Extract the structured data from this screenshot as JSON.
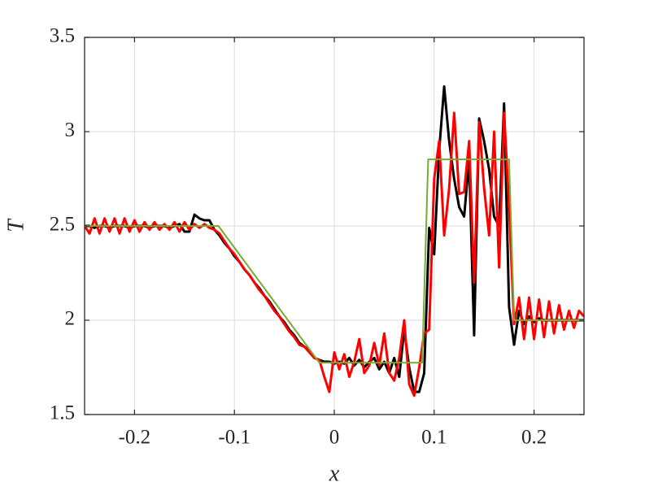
{
  "chart_data": {
    "type": "line",
    "xlabel": "x",
    "ylabel": "T",
    "xlim": [
      -0.25,
      0.25
    ],
    "ylim": [
      1.5,
      3.5
    ],
    "xticks": [
      -0.2,
      -0.1,
      0,
      0.1,
      0.2
    ],
    "yticks": [
      1.5,
      2,
      2.5,
      3,
      3.5
    ],
    "grid": true,
    "series": [
      {
        "color": "#000000",
        "x": [
          -0.25,
          -0.245,
          -0.24,
          -0.235,
          -0.23,
          -0.225,
          -0.22,
          -0.215,
          -0.21,
          -0.205,
          -0.2,
          -0.195,
          -0.19,
          -0.185,
          -0.18,
          -0.175,
          -0.17,
          -0.165,
          -0.16,
          -0.155,
          -0.15,
          -0.145,
          -0.14,
          -0.135,
          -0.13,
          -0.125,
          -0.12,
          -0.115,
          -0.11,
          -0.105,
          -0.1,
          -0.095,
          -0.09,
          -0.085,
          -0.08,
          -0.075,
          -0.07,
          -0.065,
          -0.06,
          -0.055,
          -0.05,
          -0.045,
          -0.04,
          -0.035,
          -0.03,
          -0.025,
          -0.02,
          -0.015,
          -0.01,
          -0.005,
          0,
          0.005,
          0.01,
          0.015,
          0.02,
          0.025,
          0.03,
          0.035,
          0.04,
          0.045,
          0.05,
          0.055,
          0.06,
          0.065,
          0.07,
          0.075,
          0.08,
          0.085,
          0.09,
          0.095,
          0.1,
          0.105,
          0.11,
          0.115,
          0.12,
          0.125,
          0.13,
          0.135,
          0.14,
          0.145,
          0.15,
          0.155,
          0.16,
          0.165,
          0.17,
          0.175,
          0.18,
          0.185,
          0.19,
          0.195,
          0.2,
          0.205,
          0.21,
          0.215,
          0.22,
          0.225,
          0.23,
          0.235,
          0.24,
          0.245,
          0.25
        ],
        "values": [
          2.5,
          2.5,
          2.49,
          2.5,
          2.5,
          2.49,
          2.5,
          2.5,
          2.5,
          2.49,
          2.5,
          2.5,
          2.5,
          2.49,
          2.5,
          2.5,
          2.5,
          2.49,
          2.5,
          2.51,
          2.47,
          2.47,
          2.56,
          2.54,
          2.53,
          2.53,
          2.48,
          2.45,
          2.41,
          2.38,
          2.34,
          2.31,
          2.27,
          2.24,
          2.2,
          2.17,
          2.13,
          2.1,
          2.06,
          2.02,
          1.99,
          1.95,
          1.92,
          1.88,
          1.86,
          1.84,
          1.8,
          1.79,
          1.78,
          1.78,
          1.77,
          1.78,
          1.77,
          1.8,
          1.76,
          1.79,
          1.75,
          1.78,
          1.8,
          1.74,
          1.78,
          1.72,
          1.8,
          1.7,
          1.95,
          1.75,
          1.62,
          1.62,
          1.72,
          2.49,
          2.35,
          2.9,
          3.24,
          2.95,
          2.75,
          2.6,
          2.55,
          2.85,
          1.92,
          3.07,
          2.95,
          2.8,
          2.55,
          2.5,
          3.15,
          2.07,
          1.87,
          2.05,
          1.98,
          2.02,
          1.99,
          2.01,
          2.0,
          2.0,
          2.0,
          2.0,
          2.0,
          2.0,
          2.0,
          2.0,
          2.0
        ]
      },
      {
        "color": "#ff0000",
        "x": [
          -0.25,
          -0.245,
          -0.24,
          -0.235,
          -0.23,
          -0.225,
          -0.22,
          -0.215,
          -0.21,
          -0.205,
          -0.2,
          -0.195,
          -0.19,
          -0.185,
          -0.18,
          -0.175,
          -0.17,
          -0.165,
          -0.16,
          -0.155,
          -0.15,
          -0.145,
          -0.14,
          -0.135,
          -0.13,
          -0.125,
          -0.12,
          -0.115,
          -0.11,
          -0.105,
          -0.1,
          -0.095,
          -0.09,
          -0.085,
          -0.08,
          -0.075,
          -0.07,
          -0.065,
          -0.06,
          -0.055,
          -0.05,
          -0.045,
          -0.04,
          -0.035,
          -0.03,
          -0.025,
          -0.02,
          -0.015,
          -0.01,
          -0.005,
          0,
          0.005,
          0.01,
          0.015,
          0.02,
          0.025,
          0.03,
          0.035,
          0.04,
          0.045,
          0.05,
          0.055,
          0.06,
          0.065,
          0.07,
          0.075,
          0.08,
          0.085,
          0.09,
          0.095,
          0.1,
          0.105,
          0.11,
          0.115,
          0.12,
          0.125,
          0.13,
          0.135,
          0.14,
          0.145,
          0.15,
          0.155,
          0.16,
          0.165,
          0.17,
          0.175,
          0.18,
          0.185,
          0.19,
          0.195,
          0.2,
          0.205,
          0.21,
          0.215,
          0.22,
          0.225,
          0.23,
          0.235,
          0.24,
          0.245,
          0.25
        ],
        "values": [
          2.5,
          2.46,
          2.54,
          2.46,
          2.54,
          2.47,
          2.54,
          2.46,
          2.54,
          2.47,
          2.53,
          2.47,
          2.52,
          2.48,
          2.52,
          2.48,
          2.51,
          2.48,
          2.52,
          2.47,
          2.52,
          2.48,
          2.51,
          2.49,
          2.51,
          2.49,
          2.48,
          2.46,
          2.42,
          2.38,
          2.35,
          2.31,
          2.27,
          2.24,
          2.2,
          2.16,
          2.13,
          2.09,
          2.05,
          2.02,
          1.98,
          1.94,
          1.91,
          1.87,
          1.86,
          1.83,
          1.8,
          1.79,
          1.7,
          1.62,
          1.83,
          1.74,
          1.82,
          1.7,
          1.78,
          1.9,
          1.72,
          1.76,
          1.88,
          1.76,
          1.93,
          1.72,
          1.68,
          1.8,
          2.0,
          1.66,
          1.6,
          1.75,
          1.93,
          1.95,
          2.75,
          2.95,
          2.45,
          2.7,
          3.1,
          2.67,
          2.68,
          2.95,
          2.2,
          3.05,
          2.7,
          2.45,
          3.0,
          2.28,
          3.1,
          2.6,
          1.98,
          2.12,
          1.9,
          2.12,
          1.9,
          2.11,
          1.91,
          2.1,
          1.93,
          2.08,
          1.95,
          2.05,
          1.96,
          2.05,
          2.02
        ]
      },
      {
        "color": "#77ac30",
        "x": [
          -0.25,
          -0.116,
          -0.015,
          0.088,
          0.094,
          0.175,
          0.18,
          0.25
        ],
        "values": [
          2.5,
          2.5,
          1.775,
          1.775,
          2.853,
          2.853,
          2.0,
          2.0
        ]
      }
    ]
  }
}
